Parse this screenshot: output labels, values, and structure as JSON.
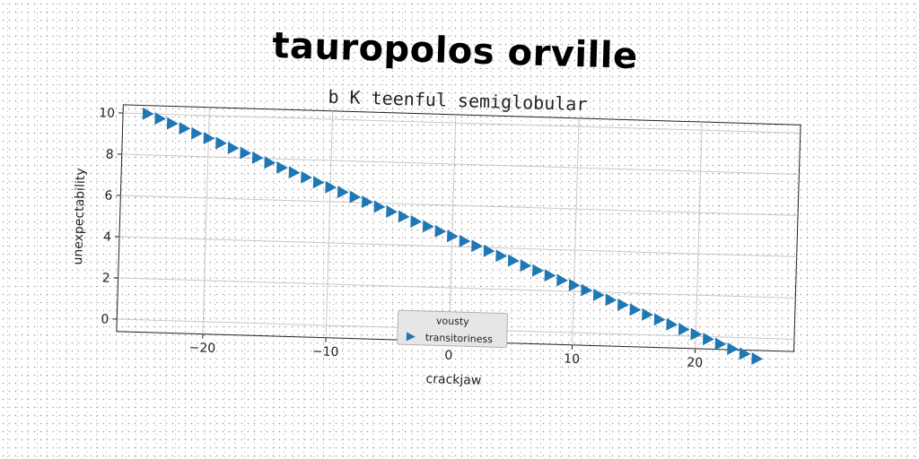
{
  "title": "tauropolos orville",
  "subtitle": "b K teenful semiglobular",
  "chart_data": {
    "type": "scatter",
    "xlabel": "crackjaw",
    "ylabel": "unexpectability",
    "xlim": [
      -27,
      28
    ],
    "ylim": [
      -0.6,
      10.4
    ],
    "xticks": [
      -20,
      -10,
      0,
      10,
      20
    ],
    "xtick_labels": [
      "−20",
      "−10",
      "0",
      "10",
      "20"
    ],
    "yticks": [
      0,
      2,
      4,
      6,
      8,
      10
    ],
    "ytick_labels": [
      "0",
      "2",
      "4",
      "6",
      "8",
      "10"
    ],
    "grid": true,
    "legend": {
      "title": "vousty",
      "placement": "bottom-center"
    },
    "series": [
      {
        "name": "transitoriness",
        "marker": "triangle-right",
        "color": "#1f77b4",
        "x_start": -25,
        "x_end": 25,
        "count": 51,
        "y_start": 10.0,
        "y_end": -1.0
      }
    ]
  }
}
